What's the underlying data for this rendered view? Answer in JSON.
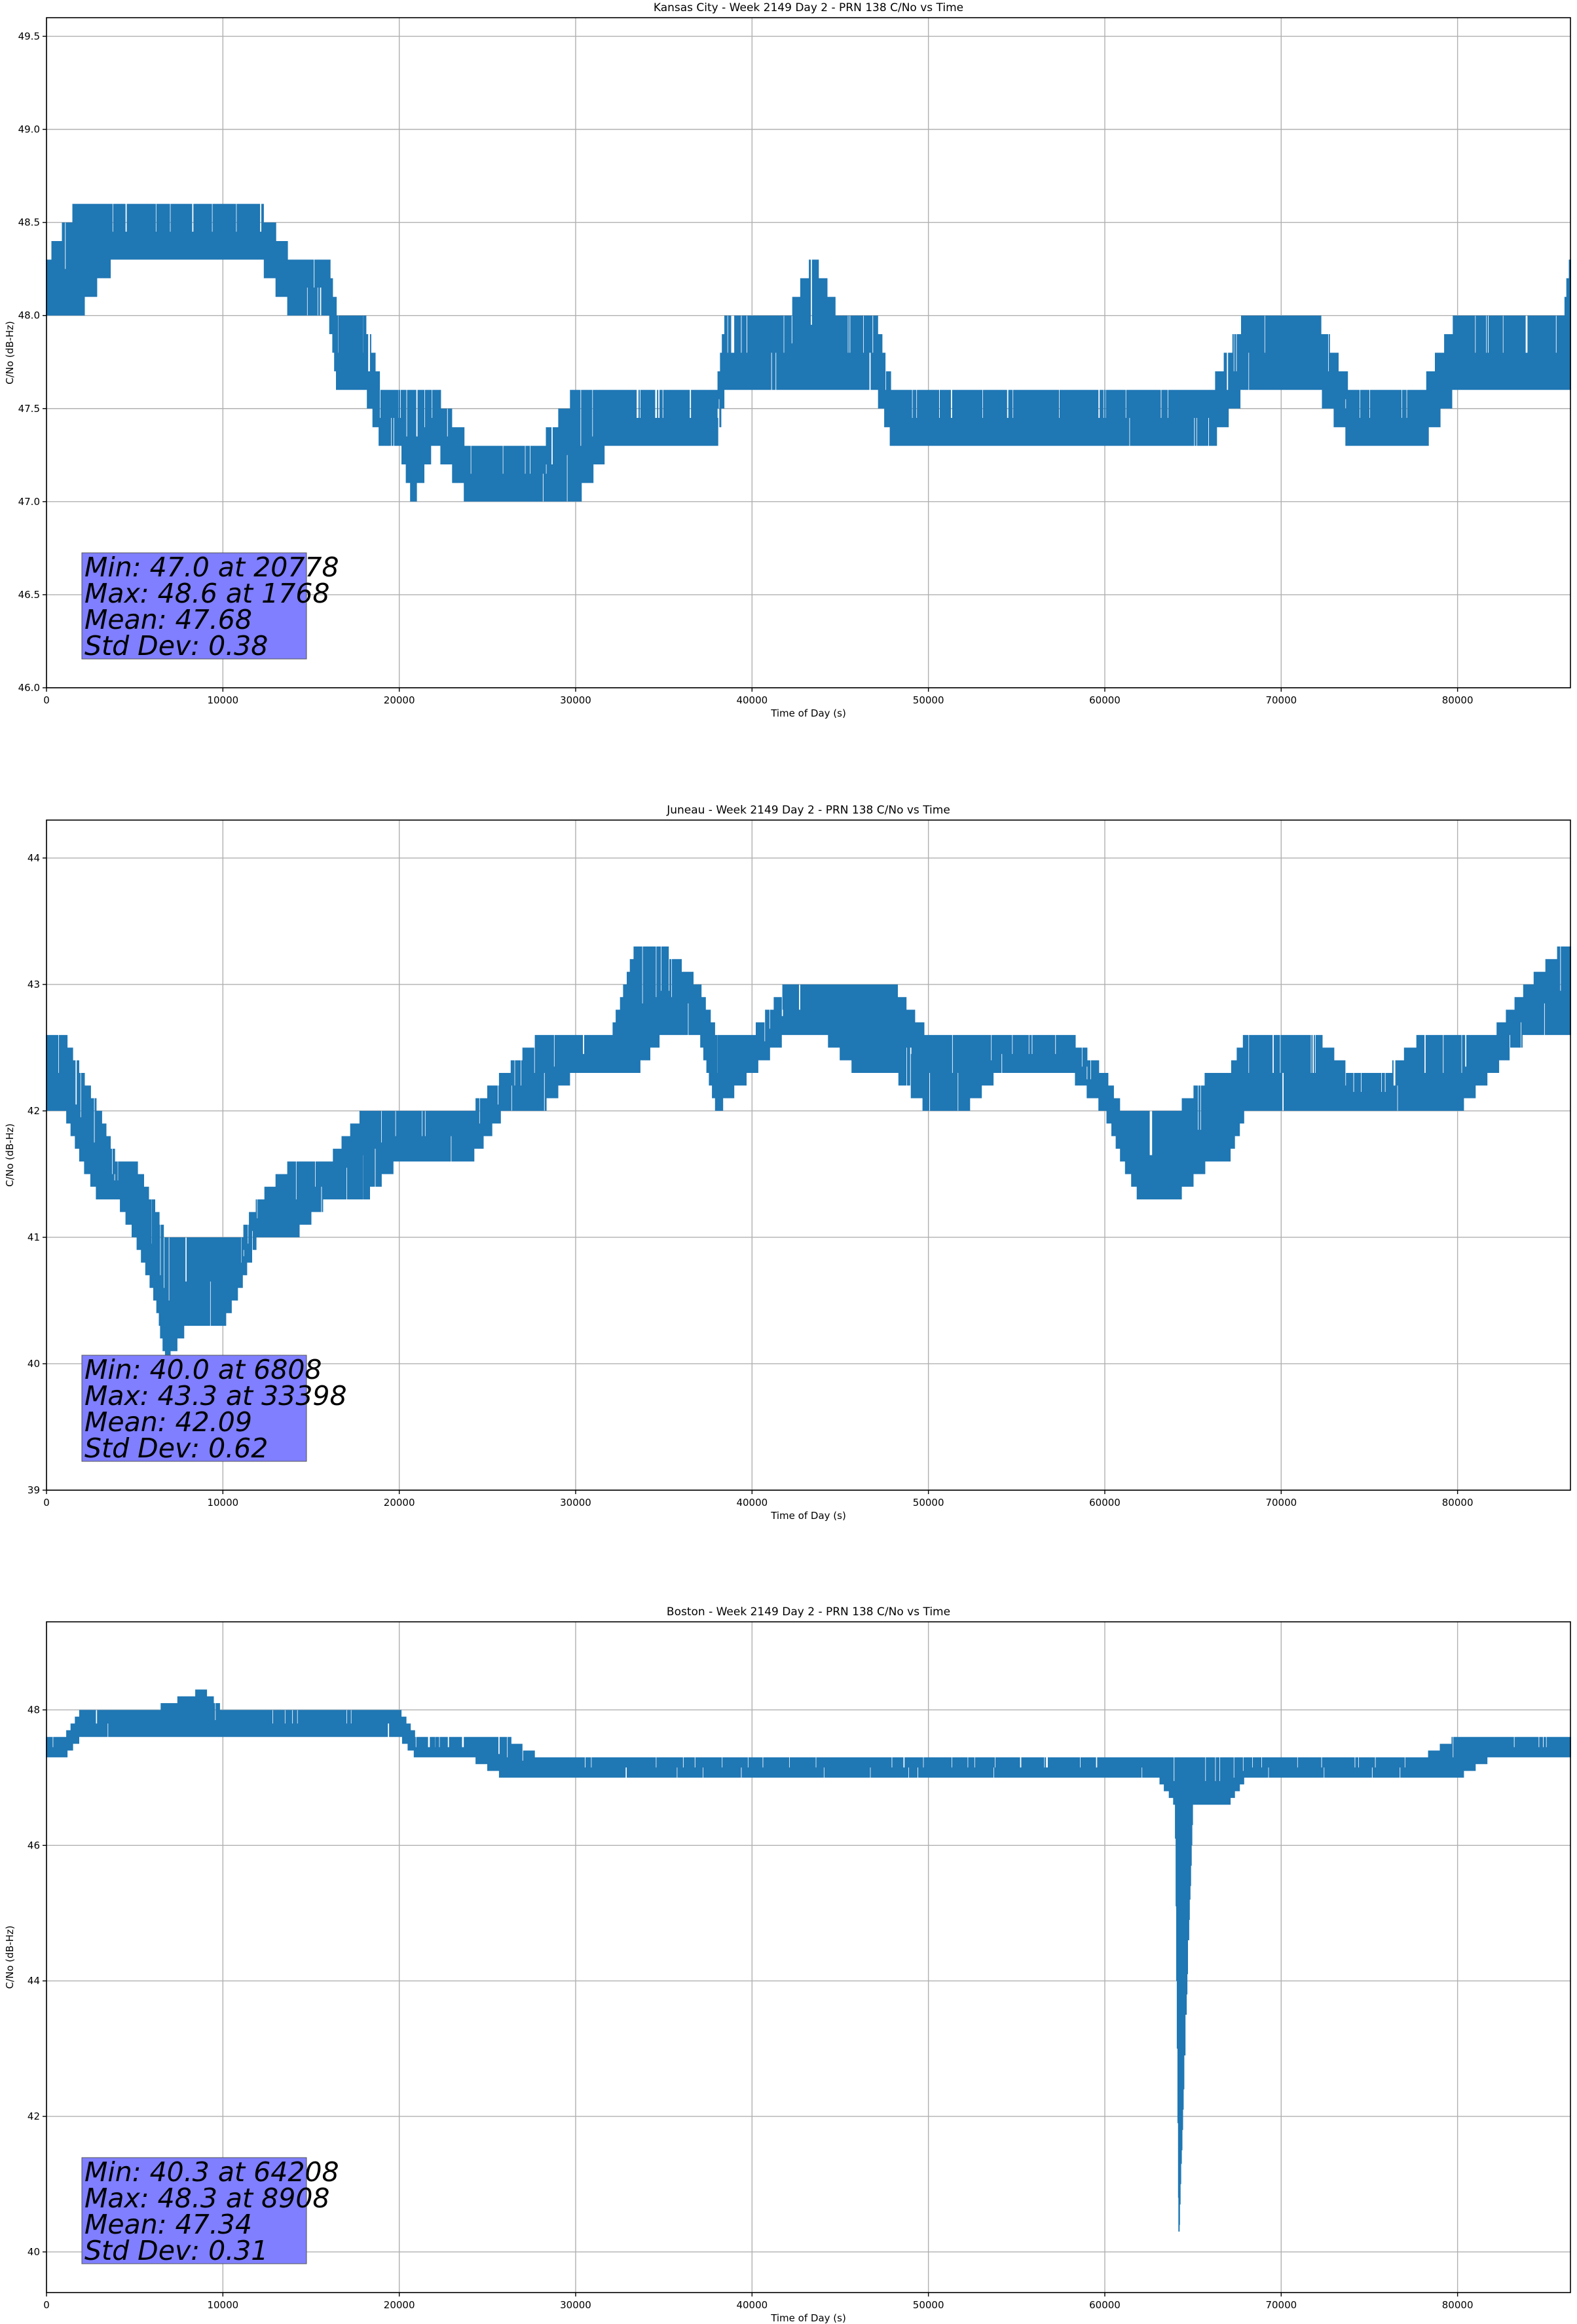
{
  "chart_data": [
    {
      "type": "line",
      "title": "Kansas City - Week 2149 Day 2 - PRN 138 C/No vs Time",
      "xlabel": "Time of Day (s)",
      "ylabel": "C/No (dB-Hz)",
      "xlim": [
        0,
        86400
      ],
      "ylim": [
        46.0,
        49.6
      ],
      "xticks": [
        0,
        10000,
        20000,
        30000,
        40000,
        50000,
        60000,
        70000,
        80000
      ],
      "yticks": [
        46.0,
        46.5,
        47.0,
        47.5,
        48.0,
        48.5,
        49.0,
        49.5
      ],
      "ytick_format": "1",
      "grid": true,
      "series_color": "#1f77b4",
      "series": [
        {
          "x": [
            0,
            1768,
            4000,
            8000,
            10000,
            12000,
            14000,
            16000,
            16500,
            17000,
            18000,
            19000,
            20000,
            20778,
            22000,
            24000,
            26000,
            28000,
            30000,
            32000,
            34000,
            36000,
            37000,
            38000,
            38500,
            40000,
            42000,
            43500,
            45000,
            47000,
            48000,
            50000,
            52000,
            54000,
            56000,
            58000,
            60000,
            62000,
            64000,
            66000,
            68000,
            70000,
            72000,
            74000,
            76000,
            78000,
            80000,
            82000,
            84000,
            86000,
            86400
          ],
          "low": [
            48.0,
            48.0,
            48.3,
            48.3,
            48.3,
            48.3,
            48.0,
            48.0,
            47.6,
            47.6,
            47.6,
            47.3,
            47.3,
            47.0,
            47.3,
            47.0,
            47.0,
            47.0,
            47.0,
            47.3,
            47.3,
            47.3,
            47.3,
            47.3,
            47.6,
            47.6,
            47.6,
            47.6,
            47.6,
            47.6,
            47.3,
            47.3,
            47.3,
            47.3,
            47.3,
            47.3,
            47.3,
            47.3,
            47.3,
            47.3,
            47.6,
            47.6,
            47.6,
            47.3,
            47.3,
            47.3,
            47.6,
            47.6,
            47.6,
            47.6,
            47.6
          ],
          "high": [
            48.3,
            48.6,
            48.6,
            48.6,
            48.6,
            48.6,
            48.3,
            48.3,
            48.0,
            48.0,
            48.0,
            47.6,
            47.6,
            47.6,
            47.6,
            47.3,
            47.3,
            47.3,
            47.6,
            47.6,
            47.6,
            47.6,
            47.6,
            47.6,
            48.0,
            48.0,
            48.0,
            48.3,
            48.0,
            48.0,
            47.6,
            47.6,
            47.6,
            47.6,
            47.6,
            47.6,
            47.6,
            47.6,
            47.6,
            47.6,
            48.0,
            48.0,
            48.0,
            47.6,
            47.6,
            47.6,
            48.0,
            48.0,
            48.0,
            48.0,
            48.3
          ]
        }
      ],
      "annotation": [
        "Min: 47.0 at 20778",
        "Max: 48.6 at 1768",
        "Mean: 47.68",
        "Std Dev: 0.38"
      ]
    },
    {
      "type": "line",
      "title": "Juneau - Week 2149 Day 2 - PRN 138 C/No vs Time",
      "xlabel": "Time of Day (s)",
      "ylabel": "C/No (dB-Hz)",
      "xlim": [
        0,
        86400
      ],
      "ylim": [
        39.0,
        44.3
      ],
      "xticks": [
        0,
        10000,
        20000,
        30000,
        40000,
        50000,
        60000,
        70000,
        80000
      ],
      "yticks": [
        39,
        40,
        41,
        42,
        43,
        44
      ],
      "ytick_format": "0",
      "grid": true,
      "series_color": "#1f77b4",
      "series": [
        {
          "x": [
            0,
            1000,
            2000,
            3000,
            4000,
            5000,
            6000,
            6808,
            8000,
            9000,
            10000,
            11000,
            12000,
            14000,
            16000,
            18000,
            20000,
            22000,
            24000,
            26000,
            28000,
            30000,
            32000,
            33398,
            35000,
            37000,
            38000,
            40000,
            42000,
            44000,
            46000,
            48000,
            50000,
            52000,
            54000,
            56000,
            58000,
            60000,
            61000,
            62000,
            63000,
            64000,
            66000,
            67000,
            68000,
            70000,
            72000,
            74000,
            76000,
            78000,
            80000,
            82000,
            84000,
            86000,
            86400
          ],
          "low": [
            42.0,
            42.0,
            41.6,
            41.3,
            41.3,
            41.0,
            40.6,
            40.0,
            40.3,
            40.3,
            40.3,
            40.6,
            41.0,
            41.0,
            41.3,
            41.3,
            41.6,
            41.6,
            41.6,
            42.0,
            42.0,
            42.3,
            42.3,
            42.3,
            42.6,
            42.6,
            42.0,
            42.3,
            42.6,
            42.6,
            42.3,
            42.3,
            42.0,
            42.0,
            42.3,
            42.3,
            42.3,
            42.0,
            41.6,
            41.3,
            41.3,
            41.3,
            41.6,
            41.6,
            42.0,
            42.0,
            42.0,
            42.0,
            42.0,
            42.0,
            42.0,
            42.3,
            42.6,
            42.6,
            42.6
          ],
          "high": [
            42.6,
            42.6,
            42.3,
            42.0,
            41.6,
            41.6,
            41.3,
            41.0,
            41.0,
            41.0,
            41.0,
            41.0,
            41.3,
            41.6,
            41.6,
            42.0,
            42.0,
            42.0,
            42.0,
            42.3,
            42.6,
            42.6,
            42.6,
            43.3,
            43.3,
            43.0,
            42.6,
            42.6,
            43.0,
            43.0,
            43.0,
            43.0,
            42.6,
            42.6,
            42.6,
            42.6,
            42.6,
            42.3,
            42.0,
            42.0,
            42.0,
            42.0,
            42.3,
            42.3,
            42.6,
            42.6,
            42.6,
            42.3,
            42.3,
            42.6,
            42.6,
            42.6,
            43.0,
            43.3,
            43.3
          ]
        }
      ],
      "annotation": [
        "Min: 40.0 at 6808",
        "Max: 43.3 at 33398",
        "Mean: 42.09",
        "Std Dev: 0.62"
      ]
    },
    {
      "type": "line",
      "title": "Boston - Week 2149 Day 2 - PRN 138 C/No vs Time",
      "xlabel": "Time of Day (s)",
      "ylabel": "C/No (dB-Hz)",
      "xlim": [
        0,
        86400
      ],
      "ylim": [
        39.4,
        49.3
      ],
      "xticks": [
        0,
        10000,
        20000,
        30000,
        40000,
        50000,
        60000,
        70000,
        80000
      ],
      "yticks": [
        40,
        42,
        44,
        46,
        48
      ],
      "ytick_format": "0",
      "grid": true,
      "series_color": "#1f77b4",
      "series": [
        {
          "x": [
            0,
            1000,
            2000,
            4000,
            6000,
            8908,
            10000,
            12000,
            14000,
            16000,
            18000,
            20000,
            21000,
            22000,
            24000,
            26000,
            28000,
            30000,
            32000,
            34000,
            36000,
            38000,
            40000,
            42000,
            44000,
            46000,
            48000,
            50000,
            52000,
            54000,
            56000,
            58000,
            60000,
            62000,
            63000,
            64000,
            64208,
            65000,
            66000,
            67000,
            68000,
            70000,
            72000,
            74000,
            76000,
            78000,
            80000,
            82000,
            84000,
            86000,
            86400
          ],
          "low": [
            47.3,
            47.3,
            47.6,
            47.6,
            47.6,
            47.6,
            47.6,
            47.6,
            47.6,
            47.6,
            47.6,
            47.6,
            47.3,
            47.3,
            47.3,
            47.0,
            47.0,
            47.0,
            47.0,
            47.0,
            47.0,
            47.0,
            47.0,
            47.0,
            47.0,
            47.0,
            47.0,
            47.0,
            47.0,
            47.0,
            47.0,
            47.0,
            47.0,
            47.0,
            47.0,
            46.6,
            40.3,
            46.6,
            46.6,
            46.6,
            47.0,
            47.0,
            47.0,
            47.0,
            47.0,
            47.0,
            47.0,
            47.3,
            47.3,
            47.3,
            47.3
          ],
          "high": [
            47.6,
            47.6,
            48.0,
            48.0,
            48.0,
            48.3,
            48.0,
            48.0,
            48.0,
            48.0,
            48.0,
            48.0,
            47.6,
            47.6,
            47.6,
            47.6,
            47.3,
            47.3,
            47.3,
            47.3,
            47.3,
            47.3,
            47.3,
            47.3,
            47.3,
            47.3,
            47.3,
            47.3,
            47.3,
            47.3,
            47.3,
            47.3,
            47.3,
            47.3,
            47.3,
            47.3,
            47.3,
            47.3,
            47.3,
            47.3,
            47.3,
            47.3,
            47.3,
            47.3,
            47.3,
            47.3,
            47.6,
            47.6,
            47.6,
            47.6,
            47.6
          ]
        }
      ],
      "annotation": [
        "Min: 40.3 at 64208",
        "Max: 48.3 at 8908",
        "Mean: 47.34",
        "Std Dev: 0.31"
      ]
    }
  ]
}
